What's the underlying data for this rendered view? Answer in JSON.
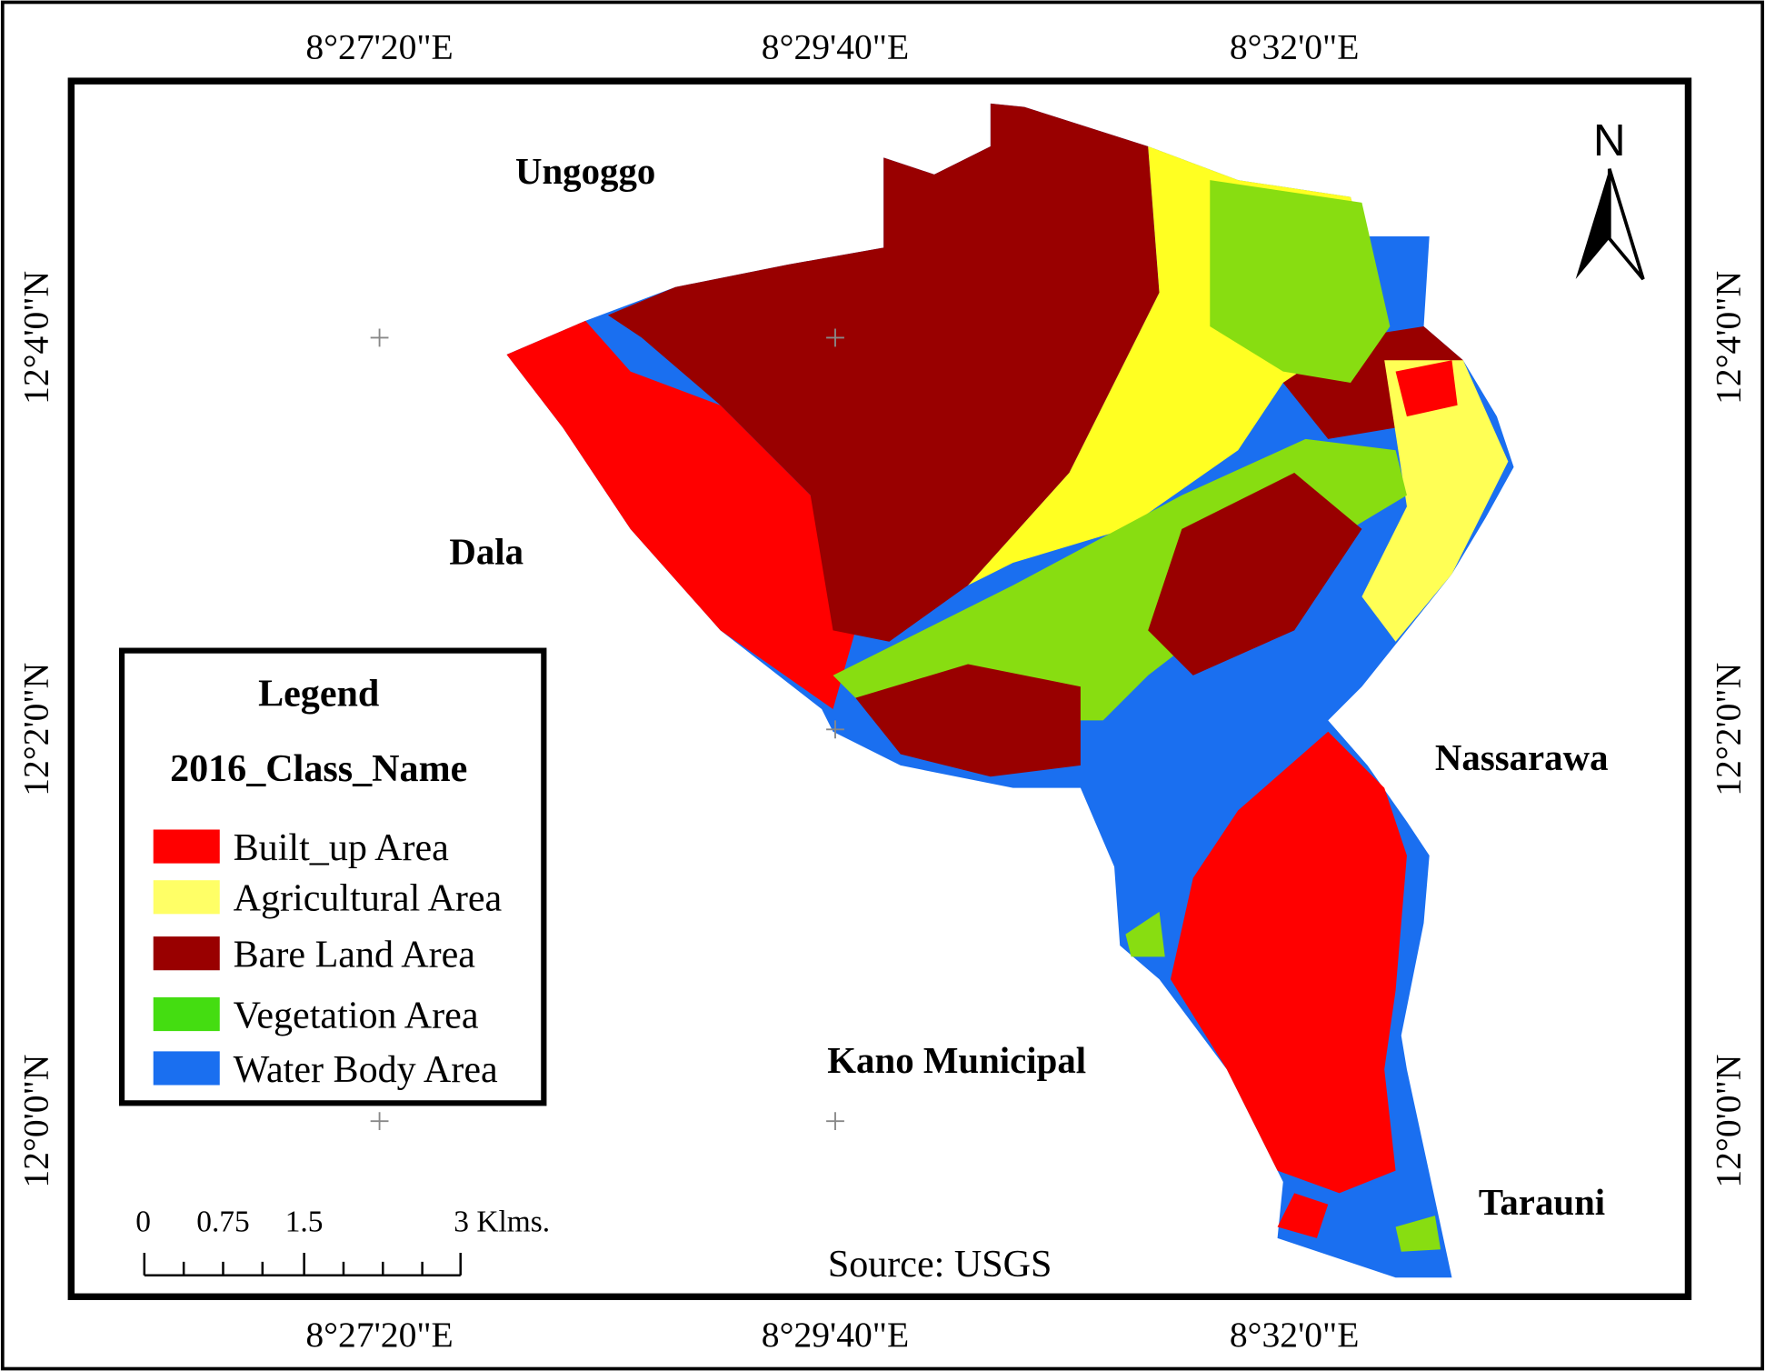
{
  "grid_labels": {
    "top": [
      "8°27'20\"E",
      "8°29'40\"E",
      "8°32'0\"E"
    ],
    "bottom": [
      "8°27'20\"E",
      "8°29'40\"E",
      "8°32'0\"E"
    ],
    "left": [
      "12°4'0\"N",
      "12°2'0\"N",
      "12°0'0\"N"
    ],
    "right": [
      "12°4'0\"N",
      "12°2'0\"N",
      "12°0'0\"N"
    ]
  },
  "places": [
    "Ungoggo",
    "Dala",
    "Nassarawa",
    "Kano Municipal",
    "Tarauni"
  ],
  "north": "N",
  "legend": {
    "title": "Legend",
    "subtitle": "2016_Class_Name",
    "items": [
      {
        "label": "Built_up Area",
        "color": "#ff0000"
      },
      {
        "label": "Agricultural Area",
        "color": "#ffff66"
      },
      {
        "label": "Bare Land Area",
        "color": "#990000"
      },
      {
        "label": "Vegetation Area",
        "color": "#44dd11"
      },
      {
        "label": "Water Body Area",
        "color": "#1a6ff0"
      }
    ]
  },
  "scale_bar": {
    "labels": [
      "0",
      "0.75",
      "1.5",
      "3 Klms."
    ]
  },
  "source": "Source: USGS"
}
